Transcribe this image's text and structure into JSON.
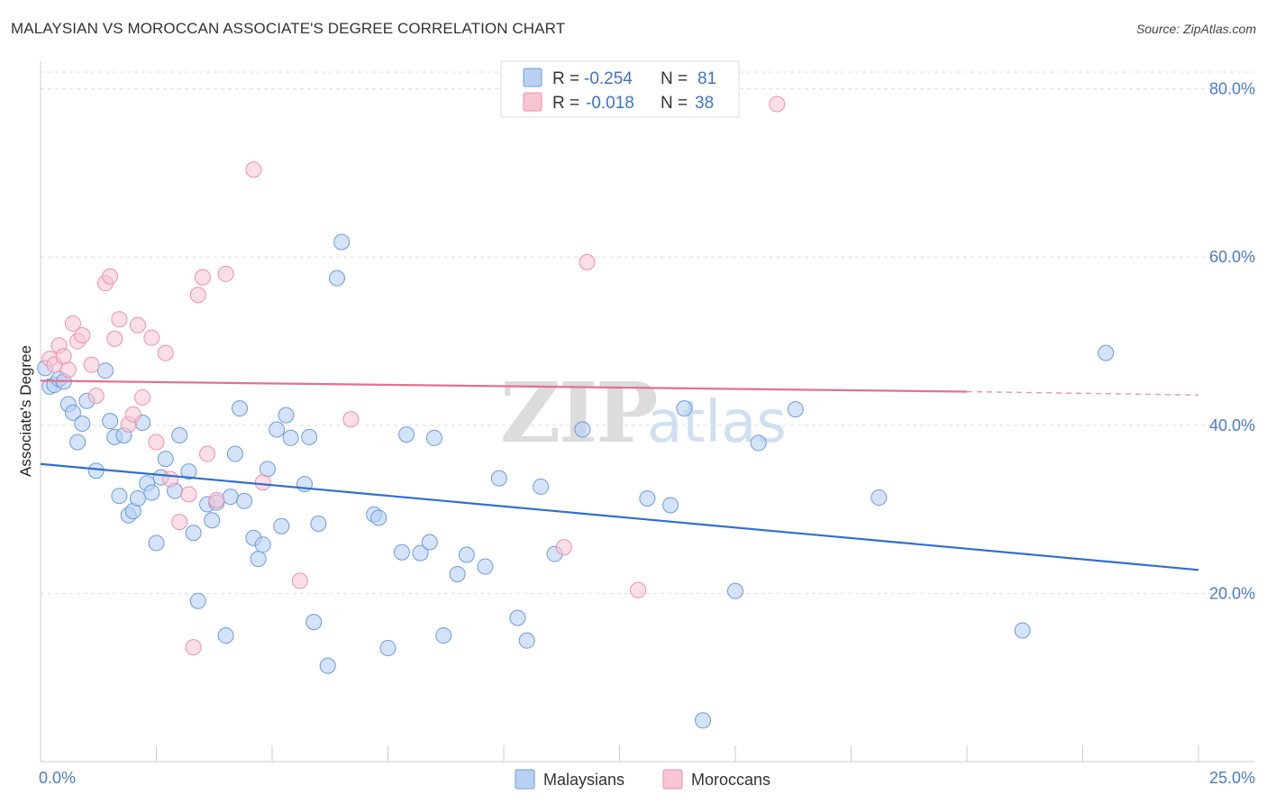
{
  "title": "MALAYSIAN VS MOROCCAN ASSOCIATE'S DEGREE CORRELATION CHART",
  "source": "Source: ZipAtlas.com",
  "colors": {
    "malaysians_fill": "#b8d1f2",
    "malaysians_stroke": "#6a9be0",
    "malaysians_line": "#2e6fd0",
    "moroccans_fill": "#f7c4d2",
    "moroccans_stroke": "#ee8fab",
    "moroccans_line": "#e4708f",
    "grid": "#dddddd",
    "tick_text": "#4a7cc9"
  },
  "legend": {
    "r_label": "R =",
    "n_label": "N =",
    "rows": [
      {
        "r": "-0.254",
        "n": "81"
      },
      {
        "r": "-0.018",
        "n": "38"
      }
    ]
  },
  "watermark": {
    "zip": "ZIP",
    "atlas": "atlas"
  },
  "chart_data": {
    "type": "scatter",
    "title": "MALAYSIAN VS MOROCCAN ASSOCIATE'S DEGREE CORRELATION CHART",
    "xlabel": "",
    "ylabel": "Associate's Degree",
    "xlim": [
      0,
      25
    ],
    "ylim": [
      0,
      82
    ],
    "x_tick_labels": [
      "0.0%",
      "25.0%"
    ],
    "y_ticks": [
      20,
      40,
      60,
      80
    ],
    "y_tick_labels": [
      "20.0%",
      "40.0%",
      "60.0%",
      "80.0%"
    ],
    "grid": true,
    "series": [
      {
        "name": "Malaysians",
        "points": [
          [
            0.1,
            46.8
          ],
          [
            0.2,
            44.6
          ],
          [
            0.3,
            44.8
          ],
          [
            0.4,
            45.5
          ],
          [
            0.5,
            45.2
          ],
          [
            0.6,
            42.5
          ],
          [
            0.7,
            41.5
          ],
          [
            0.8,
            38.0
          ],
          [
            0.9,
            40.2
          ],
          [
            1.0,
            42.9
          ],
          [
            1.2,
            34.6
          ],
          [
            1.4,
            46.5
          ],
          [
            1.5,
            40.5
          ],
          [
            1.6,
            38.6
          ],
          [
            1.7,
            31.6
          ],
          [
            1.8,
            38.8
          ],
          [
            1.9,
            29.3
          ],
          [
            2.0,
            29.8
          ],
          [
            2.1,
            31.3
          ],
          [
            2.2,
            40.3
          ],
          [
            2.3,
            33.1
          ],
          [
            2.4,
            32.0
          ],
          [
            2.5,
            26.0
          ],
          [
            2.6,
            33.8
          ],
          [
            2.7,
            36.0
          ],
          [
            2.9,
            32.2
          ],
          [
            3.0,
            38.8
          ],
          [
            3.2,
            34.5
          ],
          [
            3.3,
            27.2
          ],
          [
            3.4,
            19.1
          ],
          [
            3.6,
            30.6
          ],
          [
            3.7,
            28.7
          ],
          [
            3.8,
            30.8
          ],
          [
            4.0,
            15.0
          ],
          [
            4.1,
            31.5
          ],
          [
            4.2,
            36.6
          ],
          [
            4.3,
            42.0
          ],
          [
            4.4,
            31.0
          ],
          [
            4.6,
            26.6
          ],
          [
            4.7,
            24.1
          ],
          [
            4.8,
            25.8
          ],
          [
            4.9,
            34.8
          ],
          [
            5.1,
            39.5
          ],
          [
            5.2,
            28.0
          ],
          [
            5.3,
            41.2
          ],
          [
            5.4,
            38.5
          ],
          [
            5.7,
            33.0
          ],
          [
            5.9,
            16.6
          ],
          [
            6.0,
            28.3
          ],
          [
            6.2,
            11.4
          ],
          [
            6.4,
            57.5
          ],
          [
            6.5,
            61.8
          ],
          [
            7.2,
            29.4
          ],
          [
            7.3,
            29.0
          ],
          [
            7.5,
            13.5
          ],
          [
            7.8,
            24.9
          ],
          [
            7.9,
            38.9
          ],
          [
            8.2,
            24.8
          ],
          [
            8.4,
            26.1
          ],
          [
            8.5,
            38.5
          ],
          [
            8.7,
            15.0
          ],
          [
            9.0,
            22.3
          ],
          [
            9.2,
            24.6
          ],
          [
            9.6,
            23.2
          ],
          [
            9.9,
            33.7
          ],
          [
            10.3,
            17.1
          ],
          [
            10.5,
            14.4
          ],
          [
            10.8,
            32.7
          ],
          [
            11.1,
            24.7
          ],
          [
            11.7,
            39.5
          ],
          [
            13.1,
            31.3
          ],
          [
            13.6,
            30.5
          ],
          [
            13.9,
            42.0
          ],
          [
            14.3,
            4.9
          ],
          [
            15.0,
            20.3
          ],
          [
            15.5,
            37.9
          ],
          [
            16.3,
            41.9
          ],
          [
            18.1,
            31.4
          ],
          [
            21.2,
            15.6
          ],
          [
            23.0,
            48.6
          ],
          [
            5.8,
            38.6
          ]
        ],
        "trend": {
          "x": [
            0,
            25
          ],
          "y": [
            35.4,
            22.8
          ]
        }
      },
      {
        "name": "Moroccans",
        "points": [
          [
            0.2,
            47.9
          ],
          [
            0.3,
            47.2
          ],
          [
            0.4,
            49.5
          ],
          [
            0.5,
            48.2
          ],
          [
            0.6,
            46.6
          ],
          [
            0.7,
            52.1
          ],
          [
            0.8,
            50.0
          ],
          [
            0.9,
            50.7
          ],
          [
            1.1,
            47.2
          ],
          [
            1.2,
            43.5
          ],
          [
            1.4,
            56.9
          ],
          [
            1.5,
            57.7
          ],
          [
            1.6,
            50.3
          ],
          [
            1.7,
            52.6
          ],
          [
            1.9,
            40.1
          ],
          [
            2.0,
            41.3
          ],
          [
            2.1,
            51.9
          ],
          [
            2.2,
            43.3
          ],
          [
            2.4,
            50.4
          ],
          [
            2.5,
            38.0
          ],
          [
            2.7,
            48.6
          ],
          [
            2.8,
            33.6
          ],
          [
            3.0,
            28.5
          ],
          [
            3.2,
            31.8
          ],
          [
            3.3,
            13.6
          ],
          [
            3.4,
            55.5
          ],
          [
            3.5,
            57.6
          ],
          [
            3.6,
            36.6
          ],
          [
            3.8,
            31.1
          ],
          [
            4.0,
            58.0
          ],
          [
            4.6,
            70.4
          ],
          [
            4.8,
            33.2
          ],
          [
            5.6,
            21.5
          ],
          [
            6.7,
            40.7
          ],
          [
            11.3,
            25.5
          ],
          [
            11.8,
            59.4
          ],
          [
            12.9,
            20.4
          ],
          [
            15.9,
            78.2
          ]
        ],
        "trend": {
          "x": [
            0,
            20,
            25
          ],
          "y": [
            45.3,
            44.0,
            43.6
          ]
        }
      }
    ]
  },
  "bottom_legend": [
    "Malaysians",
    "Moroccans"
  ]
}
